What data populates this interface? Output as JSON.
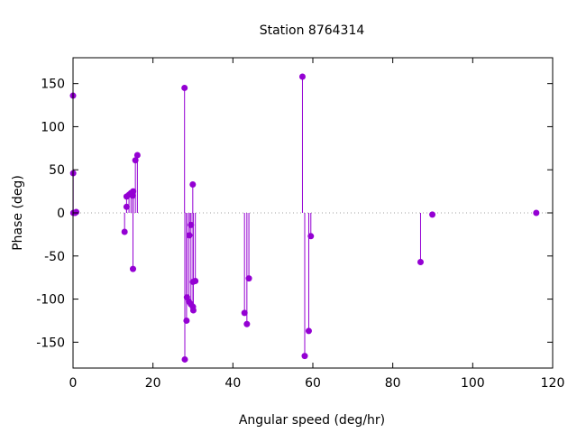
{
  "chart_data": {
    "type": "scatter",
    "title": "Station 8764314",
    "xlabel": "Angular speed (deg/hr)",
    "ylabel": "Phase (deg)",
    "xlim": [
      0,
      120
    ],
    "ylim": [
      -180,
      180
    ],
    "xticks": [
      0,
      20,
      40,
      60,
      80,
      100,
      120
    ],
    "yticks": [
      -150,
      -100,
      -50,
      0,
      50,
      100,
      150
    ],
    "grid": false,
    "zero_line": true,
    "style": "impulses with points",
    "color": "#9400d3",
    "series": [
      {
        "points": [
          {
            "x": 0.0,
            "y": 136
          },
          {
            "x": 0.04,
            "y": 46
          },
          {
            "x": 0.08,
            "y": 0
          },
          {
            "x": 0.5,
            "y": 0
          },
          {
            "x": 0.8,
            "y": 1
          },
          {
            "x": 12.9,
            "y": -22
          },
          {
            "x": 13.4,
            "y": 7
          },
          {
            "x": 13.4,
            "y": 19
          },
          {
            "x": 14.0,
            "y": 21
          },
          {
            "x": 14.5,
            "y": 23
          },
          {
            "x": 14.96,
            "y": 20
          },
          {
            "x": 15.0,
            "y": -65
          },
          {
            "x": 15.04,
            "y": 25
          },
          {
            "x": 15.6,
            "y": 61
          },
          {
            "x": 16.1,
            "y": 67
          },
          {
            "x": 27.9,
            "y": 145
          },
          {
            "x": 27.97,
            "y": -170
          },
          {
            "x": 28.4,
            "y": -125
          },
          {
            "x": 28.5,
            "y": -98
          },
          {
            "x": 29.0,
            "y": -103
          },
          {
            "x": 29.1,
            "y": -26
          },
          {
            "x": 29.5,
            "y": -106
          },
          {
            "x": 29.5,
            "y": -14
          },
          {
            "x": 29.96,
            "y": 33
          },
          {
            "x": 30.0,
            "y": -80
          },
          {
            "x": 30.0,
            "y": -109
          },
          {
            "x": 30.1,
            "y": -113
          },
          {
            "x": 30.6,
            "y": -79
          },
          {
            "x": 42.9,
            "y": -116
          },
          {
            "x": 43.5,
            "y": -129
          },
          {
            "x": 44.0,
            "y": -76
          },
          {
            "x": 57.4,
            "y": 158
          },
          {
            "x": 57.97,
            "y": -166
          },
          {
            "x": 58.98,
            "y": -137
          },
          {
            "x": 59.5,
            "y": -27
          },
          {
            "x": 86.95,
            "y": -57
          },
          {
            "x": 89.9,
            "y": -2
          },
          {
            "x": 115.9,
            "y": 0
          }
        ]
      }
    ]
  }
}
